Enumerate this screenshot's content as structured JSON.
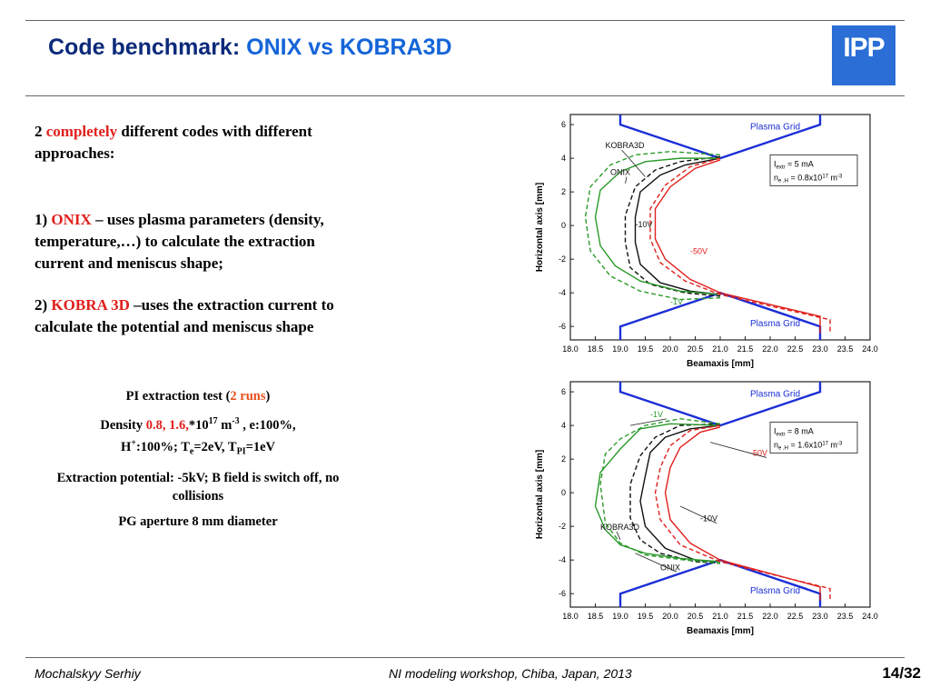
{
  "slide": {
    "title_main": "Code benchmark:",
    "title_highlight": "ONIX vs KOBRA3D",
    "logo": "IPP",
    "page": "14/32"
  },
  "left": {
    "intro_1": "2 ",
    "intro_red": "completely",
    "intro_2": " different codes with different approaches:",
    "item1_num": "1) ",
    "item1_name": "ONIX",
    "item1_text": " – uses plasma parameters (density, temperature,…) to calculate the extraction current and meniscus shape;",
    "item2_num": "2) ",
    "item2_name": "KOBRA 3D",
    "item2_text": " –uses the extraction current to calculate the potential and meniscus shape"
  },
  "test": {
    "line1_a": "PI extraction test (",
    "line1_runs": "2 runs",
    "line1_b": ")",
    "density_label": "Density ",
    "density_values": "0.8, 1.6,",
    "density_rest": "*10",
    "density_exp": "17",
    "density_unit": " m",
    "density_unit_exp": "-3",
    "density_tail": " , e:100%,",
    "line3_a": "H",
    "line3_sup": "+",
    "line3_b": ":100%; T",
    "line3_sub_e": "e",
    "line3_c": "=2eV, T",
    "line3_sub_pi": "PI",
    "line3_d": "=1eV",
    "extraction": "Extraction potential: -5kV; B field is switch off, no collisions",
    "aperture": "PG aperture 8 mm diameter"
  },
  "footer": {
    "author": "Mochalskyy Serhiy",
    "event": "NI modeling workshop,  Chiba, Japan, 2013"
  },
  "colors": {
    "title": "#0b2a7a",
    "highlight": "#1565d8",
    "red": "#e0201c",
    "grid_blue": "#1c2fd6",
    "black_series": "#111111",
    "green_series": "#2a9a2a",
    "red_series": "#e0201c"
  },
  "chart_data": [
    {
      "type": "line",
      "xlabel": "Beamaxis [mm]",
      "ylabel": "Horizontal axis [mm]",
      "xlim": [
        18.0,
        24.0
      ],
      "ylim": [
        -6.8,
        6.6
      ],
      "x_ticks": [
        "18.0",
        "18.5",
        "19.0",
        "19.5",
        "20.0",
        "20.5",
        "21.0",
        "21.5",
        "22.0",
        "22.5",
        "23.0",
        "23.5",
        "24.0"
      ],
      "y_ticks": [
        "6",
        "4",
        "2",
        "0",
        "-2",
        "-4",
        "-6"
      ],
      "grid": "Plasma Grid",
      "box": [
        "I",
        "extr",
        " = 5 mA",
        "n",
        "e ,H",
        " = 0.8x10",
        "17",
        " m",
        "-3"
      ],
      "labels": [
        "KOBRA3D",
        "ONIX",
        "-10V",
        "-50V",
        "-1V"
      ],
      "series": [
        {
          "color": "black",
          "dash": false,
          "points": [
            [
              21.0,
              4.0
            ],
            [
              20.3,
              3.6
            ],
            [
              19.8,
              3.0
            ],
            [
              19.4,
              2.0
            ],
            [
              19.3,
              0.5
            ],
            [
              19.3,
              -1.0
            ],
            [
              19.4,
              -2.3
            ],
            [
              19.8,
              -3.4
            ],
            [
              20.4,
              -3.9
            ],
            [
              21.0,
              -4.1
            ]
          ]
        },
        {
          "color": "black",
          "dash": true,
          "points": [
            [
              21.0,
              4.1
            ],
            [
              20.2,
              3.8
            ],
            [
              19.7,
              3.3
            ],
            [
              19.3,
              2.3
            ],
            [
              19.1,
              0.6
            ],
            [
              19.1,
              -1.0
            ],
            [
              19.2,
              -2.5
            ],
            [
              19.6,
              -3.5
            ],
            [
              20.3,
              -4.0
            ],
            [
              21.0,
              -4.2
            ]
          ]
        },
        {
          "color": "green",
          "dash": false,
          "points": [
            [
              21.0,
              4.0
            ],
            [
              20.2,
              4.0
            ],
            [
              19.5,
              3.8
            ],
            [
              19.0,
              3.2
            ],
            [
              18.6,
              2.1
            ],
            [
              18.5,
              0.5
            ],
            [
              18.6,
              -1.2
            ],
            [
              18.9,
              -2.4
            ],
            [
              19.4,
              -3.3
            ],
            [
              20.2,
              -3.9
            ],
            [
              21.0,
              -4.1
            ]
          ]
        },
        {
          "color": "green",
          "dash": true,
          "points": [
            [
              21.0,
              4.2
            ],
            [
              20.0,
              4.4
            ],
            [
              19.3,
              4.2
            ],
            [
              18.8,
              3.6
            ],
            [
              18.4,
              2.3
            ],
            [
              18.3,
              0.5
            ],
            [
              18.4,
              -1.5
            ],
            [
              18.8,
              -3.0
            ],
            [
              19.4,
              -3.9
            ],
            [
              20.2,
              -4.4
            ],
            [
              21.0,
              -4.3
            ]
          ]
        },
        {
          "color": "red",
          "dash": false,
          "points": [
            [
              21.0,
              3.9
            ],
            [
              20.5,
              3.4
            ],
            [
              20.0,
              2.3
            ],
            [
              19.7,
              1.0
            ],
            [
              19.7,
              -0.8
            ],
            [
              19.9,
              -2.0
            ],
            [
              20.4,
              -3.2
            ],
            [
              21.0,
              -4.0
            ],
            [
              23.0,
              -5.4
            ],
            [
              23.0,
              -6.4
            ]
          ]
        },
        {
          "color": "red",
          "dash": true,
          "points": [
            [
              21.0,
              4.0
            ],
            [
              20.4,
              3.5
            ],
            [
              19.9,
              2.4
            ],
            [
              19.6,
              1.0
            ],
            [
              19.6,
              -0.8
            ],
            [
              19.8,
              -2.2
            ],
            [
              20.3,
              -3.3
            ],
            [
              21.0,
              -4.1
            ],
            [
              23.2,
              -5.6
            ],
            [
              23.2,
              -6.4
            ]
          ]
        }
      ]
    },
    {
      "type": "line",
      "xlabel": "Beamaxis [mm]",
      "ylabel": "Horizontal axis [mm]",
      "xlim": [
        18.0,
        24.0
      ],
      "ylim": [
        -6.8,
        6.6
      ],
      "x_ticks": [
        "18.0",
        "18.5",
        "19.0",
        "19.5",
        "20.0",
        "20.5",
        "21.0",
        "21.5",
        "22.0",
        "22.5",
        "23.0",
        "23.5",
        "24.0"
      ],
      "y_ticks": [
        "6",
        "4",
        "2",
        "0",
        "-2",
        "-4",
        "-6"
      ],
      "grid": "Plasma Grid",
      "box": [
        "I",
        "extr",
        " = 8 mA",
        "n",
        "e ,H",
        " = 1.6x10",
        "17",
        " m",
        "-3"
      ],
      "labels": [
        "-1V",
        "-50V",
        "-10V",
        "KOBRA3D",
        "ONIX"
      ],
      "series": [
        {
          "color": "black",
          "dash": false,
          "points": [
            [
              21.0,
              4.0
            ],
            [
              20.4,
              3.8
            ],
            [
              19.9,
              3.3
            ],
            [
              19.6,
              2.4
            ],
            [
              19.5,
              1.0
            ],
            [
              19.4,
              -0.5
            ],
            [
              19.5,
              -2.0
            ],
            [
              19.9,
              -3.3
            ],
            [
              20.5,
              -4.0
            ],
            [
              21.0,
              -4.1
            ]
          ]
        },
        {
          "color": "black",
          "dash": true,
          "points": [
            [
              21.0,
              4.1
            ],
            [
              20.2,
              4.0
            ],
            [
              19.7,
              3.3
            ],
            [
              19.4,
              2.2
            ],
            [
              19.2,
              0.5
            ],
            [
              19.2,
              -1.5
            ],
            [
              19.4,
              -2.8
            ],
            [
              19.8,
              -3.6
            ],
            [
              20.5,
              -4.1
            ],
            [
              21.0,
              -4.2
            ]
          ]
        },
        {
          "color": "green",
          "dash": false,
          "points": [
            [
              21.0,
              4.0
            ],
            [
              20.0,
              4.1
            ],
            [
              19.4,
              3.8
            ],
            [
              19.0,
              2.6
            ],
            [
              18.6,
              1.2
            ],
            [
              18.5,
              -0.8
            ],
            [
              18.7,
              -2.2
            ],
            [
              19.0,
              -3.1
            ],
            [
              19.5,
              -3.6
            ],
            [
              20.2,
              -3.9
            ],
            [
              21.0,
              -4.1
            ]
          ]
        },
        {
          "color": "green",
          "dash": true,
          "points": [
            [
              21.0,
              4.1
            ],
            [
              20.2,
              4.4
            ],
            [
              19.5,
              4.0
            ],
            [
              19.0,
              3.2
            ],
            [
              18.7,
              2.3
            ],
            [
              18.6,
              0.5
            ],
            [
              18.7,
              -1.8
            ],
            [
              19.0,
              -3.0
            ],
            [
              19.5,
              -3.7
            ],
            [
              20.3,
              -4.0
            ],
            [
              21.0,
              -4.2
            ]
          ]
        },
        {
          "color": "red",
          "dash": false,
          "points": [
            [
              21.0,
              3.9
            ],
            [
              20.6,
              3.6
            ],
            [
              20.2,
              2.7
            ],
            [
              20.0,
              1.5
            ],
            [
              19.9,
              0.0
            ],
            [
              20.0,
              -1.6
            ],
            [
              20.4,
              -3.0
            ],
            [
              21.0,
              -4.0
            ],
            [
              23.0,
              -5.6
            ],
            [
              23.0,
              -6.4
            ]
          ]
        },
        {
          "color": "red",
          "dash": true,
          "points": [
            [
              21.0,
              4.0
            ],
            [
              20.4,
              3.7
            ],
            [
              20.0,
              2.8
            ],
            [
              19.8,
              1.5
            ],
            [
              19.7,
              0.0
            ],
            [
              19.8,
              -1.6
            ],
            [
              20.2,
              -3.1
            ],
            [
              21.0,
              -4.1
            ],
            [
              23.2,
              -5.7
            ],
            [
              23.2,
              -6.4
            ]
          ]
        }
      ]
    }
  ]
}
